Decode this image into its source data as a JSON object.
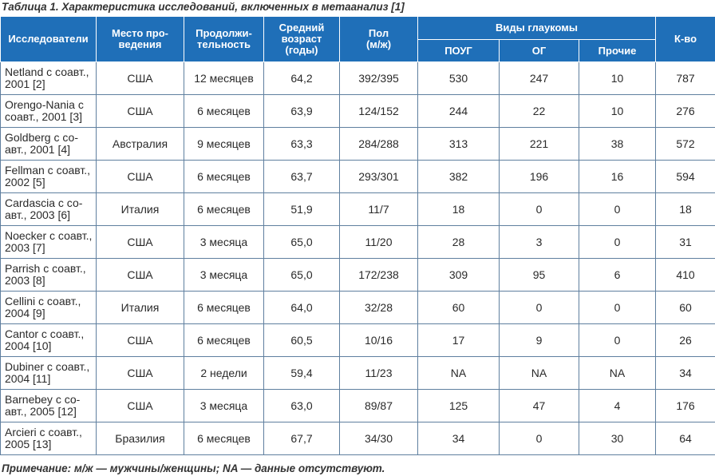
{
  "caption": "Таблица 1. Характеристика исследований, включенных в метаанализ [1]",
  "headers": {
    "researchers": "Исследователи",
    "place": "Место про-\nведения",
    "duration": "Продолжи-\nтельность",
    "age": "Средний\nвозраст\n(годы)",
    "sex": "Пол\n(м/ж)",
    "glaucoma_types": "Виды глаукомы",
    "poug": "ПОУГ",
    "og": "ОГ",
    "other": "Прочие",
    "count": "К-во"
  },
  "rows": [
    {
      "authors": "Netland с соавт., 2001 [2]",
      "place": "США",
      "duration": "12 месяцев",
      "age": "64,2",
      "sex": "392/395",
      "poug": "530",
      "og": "247",
      "other": "10",
      "count": "787"
    },
    {
      "authors": "Orengo-Nania с соавт., 2001 [3]",
      "place": "США",
      "duration": "6 месяцев",
      "age": "63,9",
      "sex": "124/152",
      "poug": "244",
      "og": "22",
      "other": "10",
      "count": "276"
    },
    {
      "authors": "Goldberg с со-авт., 2001 [4]",
      "place": "Австралия",
      "duration": "9 месяцев",
      "age": "63,3",
      "sex": "284/288",
      "poug": "313",
      "og": "221",
      "other": "38",
      "count": "572"
    },
    {
      "authors": "Fellman с соавт., 2002 [5]",
      "place": "США",
      "duration": "6 месяцев",
      "age": "63,7",
      "sex": "293/301",
      "poug": "382",
      "og": "196",
      "other": "16",
      "count": "594"
    },
    {
      "authors": "Cardascia с со-авт., 2003 [6]",
      "place": "Италия",
      "duration": "6 месяцев",
      "age": "51,9",
      "sex": "11/7",
      "poug": "18",
      "og": "0",
      "other": "0",
      "count": "18"
    },
    {
      "authors": "Noecker с соавт., 2003 [7]",
      "place": "США",
      "duration": "3 месяца",
      "age": "65,0",
      "sex": "11/20",
      "poug": "28",
      "og": "3",
      "other": "0",
      "count": "31"
    },
    {
      "authors": "Parrish с соавт., 2003 [8]",
      "place": "США",
      "duration": "3 месяца",
      "age": "65,0",
      "sex": "172/238",
      "poug": "309",
      "og": "95",
      "other": "6",
      "count": "410"
    },
    {
      "authors": "Cellini с соавт., 2004 [9]",
      "place": "Италия",
      "duration": "6 месяцев",
      "age": "64,0",
      "sex": "32/28",
      "poug": "60",
      "og": "0",
      "other": "0",
      "count": "60"
    },
    {
      "authors": "Cantor с соавт., 2004 [10]",
      "place": "США",
      "duration": "6 месяцев",
      "age": "60,5",
      "sex": "10/16",
      "poug": "17",
      "og": "9",
      "other": "0",
      "count": "26"
    },
    {
      "authors": "Dubiner с соавт., 2004 [11]",
      "place": "США",
      "duration": "2 недели",
      "age": "59,4",
      "sex": "11/23",
      "poug": "NA",
      "og": "NA",
      "other": "NA",
      "count": "34"
    },
    {
      "authors": "Barnebey с со-авт., 2005 [12]",
      "place": "США",
      "duration": "3 месяца",
      "age": "63,0",
      "sex": "89/87",
      "poug": "125",
      "og": "47",
      "other": "4",
      "count": "176"
    },
    {
      "authors": "Arcieri с соавт., 2005 [13]",
      "place": "Бразилия",
      "duration": "6 месяцев",
      "age": "67,7",
      "sex": "34/30",
      "poug": "34",
      "og": "0",
      "other": "30",
      "count": "64"
    }
  ],
  "note": "Примечание: м/ж — мужчины/женщины; NA — данные отсутствуют.",
  "colors": {
    "header_bg": "#1f6fb8",
    "header_text": "#ffffff",
    "border": "#5f7f9f"
  }
}
